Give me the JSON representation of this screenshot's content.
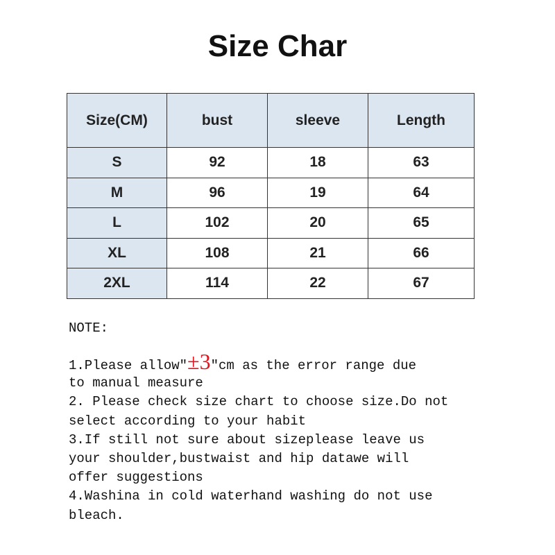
{
  "title": "Size Char",
  "table": {
    "headers": [
      "Size(CM)",
      "bust",
      "sleeve",
      "Length"
    ],
    "rows": [
      [
        "S",
        "92",
        "18",
        "63"
      ],
      [
        "M",
        "96",
        "19",
        "64"
      ],
      [
        "L",
        "102",
        "20",
        "65"
      ],
      [
        "XL",
        "108",
        "21",
        "66"
      ],
      [
        "2XL",
        "114",
        "22",
        "67"
      ]
    ]
  },
  "notes": {
    "heading": "NOTE:",
    "line1_pre": "1.Please allow″",
    "line1_highlight": "±3",
    "line1_post": "″cm as the error range due",
    "lines": [
      "to manual measure",
      "2. Please check size chart to choose size.Do not",
      "select according to your habit",
      "3.If still not sure about sizeplease leave us",
      "your shoulder,bustwaist and hip datawe will",
      "offer suggestions",
      "4.Washina in cold waterhand washing do not use",
      "bleach."
    ],
    "highlight_color": "#e0141e"
  }
}
